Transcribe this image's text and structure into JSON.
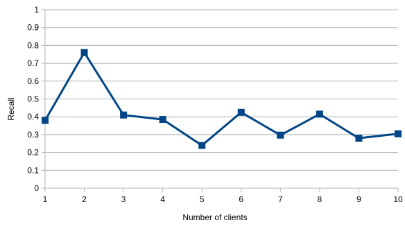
{
  "chart_data": {
    "type": "line",
    "title": "",
    "xlabel": "Number of clients",
    "ylabel": "Recall",
    "x": [
      1,
      2,
      3,
      4,
      5,
      6,
      7,
      8,
      9,
      10
    ],
    "series": [
      {
        "values": [
          0.38,
          0.76,
          0.41,
          0.385,
          0.24,
          0.425,
          0.297,
          0.415,
          0.28,
          0.305
        ]
      }
    ],
    "xlim": [
      1,
      10
    ],
    "ylim": [
      0,
      1
    ],
    "y_ticks": [
      "0",
      "0.1",
      "0.2",
      "0.3",
      "0.4",
      "0.5",
      "0.6",
      "0.7",
      "0.8",
      "0.9",
      "1"
    ],
    "x_ticks": [
      "1",
      "2",
      "3",
      "4",
      "5",
      "6",
      "7",
      "8",
      "9",
      "10"
    ],
    "grid": true,
    "line_color": "#004586",
    "grid_color": "#b3b3b3"
  }
}
